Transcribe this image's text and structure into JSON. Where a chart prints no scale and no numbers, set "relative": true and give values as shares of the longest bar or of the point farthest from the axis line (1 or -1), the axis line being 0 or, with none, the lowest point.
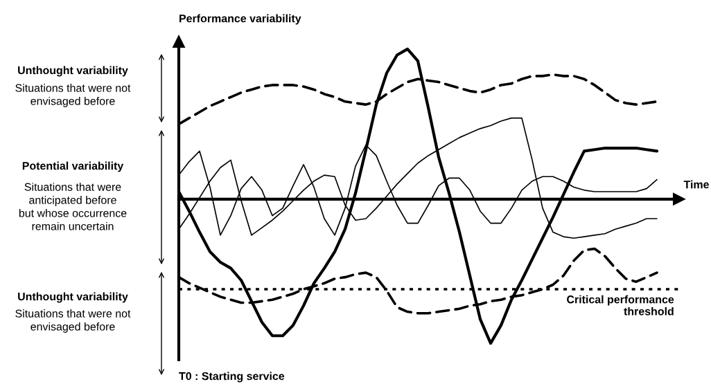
{
  "chart_data": {
    "type": "line",
    "relative": true,
    "xlabel": "Time",
    "ylabel": "Performance variability",
    "categories": [
      null,
      null,
      null,
      null,
      null,
      null,
      null,
      null,
      null,
      null,
      null,
      null,
      null,
      null,
      null,
      null,
      null,
      null,
      null,
      null,
      null,
      null,
      null,
      null,
      null,
      null,
      null,
      null,
      null,
      null,
      null,
      null,
      null,
      null,
      null,
      null,
      null,
      null,
      null,
      null,
      null,
      null,
      null,
      null,
      null,
      null,
      null
    ],
    "series": [
      {
        "color": "#000000",
        "line_style": "solid",
        "values": [
          0.05,
          -0.08,
          -0.22,
          -0.35,
          -0.42,
          -0.46,
          -0.54,
          -0.68,
          -0.82,
          -0.91,
          -0.91,
          -0.84,
          -0.71,
          -0.56,
          -0.46,
          -0.35,
          -0.2,
          0.04,
          0.33,
          0.63,
          0.84,
          0.96,
          1.0,
          0.92,
          0.61,
          0.28,
          0.04,
          -0.22,
          -0.51,
          -0.8,
          -0.96,
          -0.84,
          -0.67,
          -0.54,
          -0.4,
          -0.26,
          -0.12,
          0.03,
          0.18,
          0.32,
          0.33,
          0.34,
          0.34,
          0.34,
          0.34,
          0.33,
          0.32
        ]
      },
      {
        "color": "#000000",
        "line_style": "solid",
        "values": [
          0.16,
          0.25,
          0.32,
          0.08,
          -0.24,
          -0.11,
          0.07,
          0.15,
          0.06,
          -0.11,
          -0.06,
          0.09,
          0.23,
          0.08,
          -0.13,
          -0.24,
          -0.06,
          0.22,
          0.36,
          0.29,
          0.12,
          -0.04,
          -0.16,
          -0.16,
          -0.04,
          0.09,
          0.14,
          0.14,
          0.06,
          -0.08,
          -0.16,
          -0.16,
          -0.06,
          0.06,
          0.12,
          0.15,
          0.15,
          0.12,
          0.08,
          0.06,
          0.05,
          0.05,
          0.05,
          0.05,
          0.05,
          0.07,
          0.13
        ]
      },
      {
        "color": "#000000",
        "line_style": "solid",
        "values": [
          -0.2,
          -0.1,
          0.01,
          0.12,
          0.21,
          0.26,
          -0.01,
          -0.24,
          -0.19,
          -0.14,
          -0.08,
          -0.01,
          0.06,
          0.12,
          0.16,
          0.15,
          -0.04,
          -0.14,
          -0.13,
          -0.06,
          0.02,
          0.1,
          0.17,
          0.24,
          0.29,
          0.33,
          0.37,
          0.41,
          0.44,
          0.47,
          0.49,
          0.52,
          0.54,
          0.54,
          0.26,
          -0.06,
          -0.22,
          -0.25,
          -0.26,
          -0.25,
          -0.24,
          -0.23,
          -0.2,
          -0.18,
          -0.16,
          -0.13,
          -0.13
        ]
      },
      {
        "color": "#000000",
        "line_style": "dashed",
        "values": [
          0.5,
          0.54,
          0.58,
          0.62,
          0.65,
          0.68,
          0.71,
          0.73,
          0.75,
          0.76,
          0.76,
          0.76,
          0.75,
          0.73,
          0.7,
          0.68,
          0.65,
          0.64,
          0.63,
          0.65,
          0.7,
          0.74,
          0.78,
          0.8,
          0.79,
          0.78,
          0.76,
          0.74,
          0.72,
          0.71,
          0.73,
          0.76,
          0.77,
          0.8,
          0.82,
          0.82,
          0.83,
          0.82,
          0.82,
          0.8,
          0.76,
          0.71,
          0.66,
          0.64,
          0.63,
          0.64,
          0.65
        ]
      },
      {
        "color": "#000000",
        "line_style": "dashed",
        "values": [
          -0.52,
          -0.56,
          -0.59,
          -0.62,
          -0.65,
          -0.67,
          -0.69,
          -0.69,
          -0.68,
          -0.67,
          -0.65,
          -0.63,
          -0.6,
          -0.58,
          -0.56,
          -0.53,
          -0.52,
          -0.5,
          -0.49,
          -0.52,
          -0.61,
          -0.72,
          -0.75,
          -0.76,
          -0.76,
          -0.75,
          -0.74,
          -0.73,
          -0.71,
          -0.7,
          -0.68,
          -0.67,
          -0.65,
          -0.64,
          -0.62,
          -0.6,
          -0.57,
          -0.51,
          -0.41,
          -0.34,
          -0.33,
          -0.38,
          -0.46,
          -0.53,
          -0.55,
          -0.52,
          -0.49
        ]
      }
    ],
    "ref_lines": [
      {
        "axis": "y",
        "value": -0.6,
        "label": "Critical performance\nthreshold",
        "color": "#000000",
        "line_style": "dotted"
      }
    ],
    "annotations": [
      "Unthought variability",
      "Situations that were not\nenvisaged before",
      "Potential variability",
      "Situations that were\nanticipated before\nbut whose occurrence\nremain uncertain",
      "Unthought variability",
      "Situations that were not\nenvisaged before",
      "T0 : Starting service"
    ],
    "marker": "none"
  }
}
